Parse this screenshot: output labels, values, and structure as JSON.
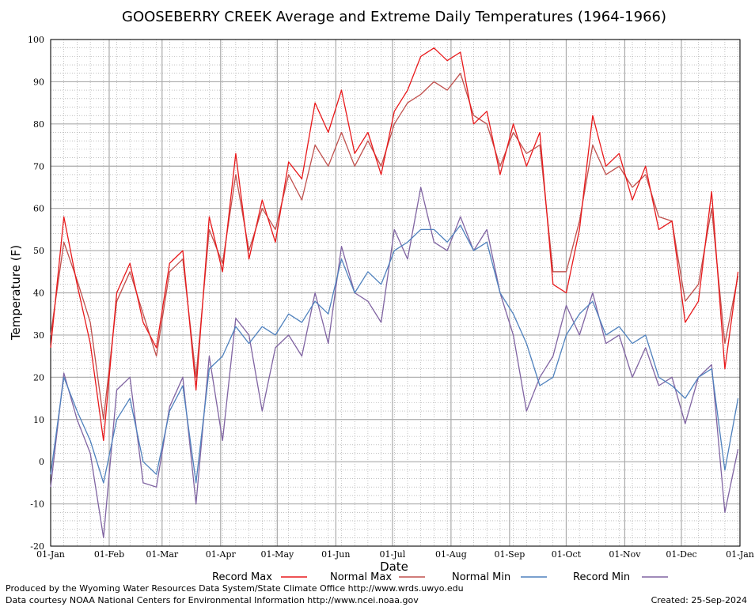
{
  "chart_data": {
    "type": "line",
    "title": "GOOSEBERRY CREEK Average and Extreme Daily Temperatures (1964-1966)",
    "xlabel": "Date",
    "ylabel": "Temperature (F)",
    "ylim": [
      -20,
      100
    ],
    "y_ticks": [
      -20,
      -10,
      0,
      10,
      20,
      30,
      40,
      50,
      60,
      70,
      80,
      90,
      100
    ],
    "x_ticks": [
      "01-Jan",
      "01-Feb",
      "01-Mar",
      "01-Apr",
      "01-May",
      "01-Jun",
      "01-Jul",
      "01-Aug",
      "01-Sep",
      "01-Oct",
      "01-Nov",
      "01-Dec",
      "01-Jan"
    ],
    "grid": true,
    "legend_position": "bottom",
    "series": [
      {
        "name": "Record Max",
        "color": "#e8191b",
        "x": [
          "01-Jan",
          "08-Jan",
          "15-Jan",
          "22-Jan",
          "29-Jan",
          "05-Feb",
          "12-Feb",
          "19-Feb",
          "26-Feb",
          "05-Mar",
          "12-Mar",
          "19-Mar",
          "26-Mar",
          "02-Apr",
          "09-Apr",
          "16-Apr",
          "23-Apr",
          "30-Apr",
          "07-May",
          "14-May",
          "21-May",
          "28-May",
          "04-Jun",
          "11-Jun",
          "18-Jun",
          "25-Jun",
          "02-Jul",
          "09-Jul",
          "16-Jul",
          "23-Jul",
          "30-Jul",
          "06-Aug",
          "13-Aug",
          "20-Aug",
          "27-Aug",
          "03-Sep",
          "10-Sep",
          "17-Sep",
          "24-Sep",
          "01-Oct",
          "08-Oct",
          "15-Oct",
          "22-Oct",
          "29-Oct",
          "05-Nov",
          "12-Nov",
          "19-Nov",
          "26-Nov",
          "03-Dec",
          "10-Dec",
          "17-Dec",
          "24-Dec",
          "31-Dec"
        ],
        "values": [
          27,
          58,
          42,
          28,
          5,
          40,
          47,
          33,
          27,
          47,
          50,
          17,
          58,
          45,
          73,
          48,
          62,
          52,
          71,
          67,
          85,
          78,
          88,
          73,
          78,
          68,
          83,
          88,
          96,
          98,
          95,
          97,
          80,
          83,
          68,
          80,
          70,
          78,
          42,
          40,
          55,
          82,
          70,
          73,
          62,
          70,
          55,
          57,
          33,
          38,
          64,
          22,
          45
        ]
      },
      {
        "name": "Normal Max",
        "color": "#c0504d",
        "x": [
          "01-Jan",
          "08-Jan",
          "15-Jan",
          "22-Jan",
          "29-Jan",
          "05-Feb",
          "12-Feb",
          "19-Feb",
          "26-Feb",
          "05-Mar",
          "12-Mar",
          "19-Mar",
          "26-Mar",
          "02-Apr",
          "09-Apr",
          "16-Apr",
          "23-Apr",
          "30-Apr",
          "07-May",
          "14-May",
          "21-May",
          "28-May",
          "04-Jun",
          "11-Jun",
          "18-Jun",
          "25-Jun",
          "02-Jul",
          "09-Jul",
          "16-Jul",
          "23-Jul",
          "30-Jul",
          "06-Aug",
          "13-Aug",
          "20-Aug",
          "27-Aug",
          "03-Sep",
          "10-Sep",
          "17-Sep",
          "24-Sep",
          "01-Oct",
          "08-Oct",
          "15-Oct",
          "22-Oct",
          "29-Oct",
          "05-Nov",
          "12-Nov",
          "19-Nov",
          "26-Nov",
          "03-Dec",
          "10-Dec",
          "17-Dec",
          "24-Dec",
          "31-Dec"
        ],
        "values": [
          30,
          52,
          43,
          33,
          10,
          38,
          45,
          35,
          25,
          45,
          48,
          20,
          55,
          47,
          68,
          50,
          60,
          55,
          68,
          62,
          75,
          70,
          78,
          70,
          76,
          70,
          80,
          85,
          87,
          90,
          88,
          92,
          82,
          80,
          70,
          78,
          73,
          75,
          45,
          45,
          57,
          75,
          68,
          70,
          65,
          68,
          58,
          57,
          38,
          42,
          60,
          28,
          44
        ]
      },
      {
        "name": "Normal Min",
        "color": "#4f81bd",
        "x": [
          "01-Jan",
          "08-Jan",
          "15-Jan",
          "22-Jan",
          "29-Jan",
          "05-Feb",
          "12-Feb",
          "19-Feb",
          "26-Feb",
          "05-Mar",
          "12-Mar",
          "19-Mar",
          "26-Mar",
          "02-Apr",
          "09-Apr",
          "16-Apr",
          "23-Apr",
          "30-Apr",
          "07-May",
          "14-May",
          "21-May",
          "28-May",
          "04-Jun",
          "11-Jun",
          "18-Jun",
          "25-Jun",
          "02-Jul",
          "09-Jul",
          "16-Jul",
          "23-Jul",
          "30-Jul",
          "06-Aug",
          "13-Aug",
          "20-Aug",
          "27-Aug",
          "03-Sep",
          "10-Sep",
          "17-Sep",
          "24-Sep",
          "01-Oct",
          "08-Oct",
          "15-Oct",
          "22-Oct",
          "29-Oct",
          "05-Nov",
          "12-Nov",
          "19-Nov",
          "26-Nov",
          "03-Dec",
          "10-Dec",
          "17-Dec",
          "24-Dec",
          "31-Dec"
        ],
        "values": [
          -3,
          20,
          12,
          5,
          -5,
          10,
          15,
          0,
          -3,
          12,
          18,
          -5,
          22,
          25,
          32,
          28,
          32,
          30,
          35,
          33,
          38,
          35,
          48,
          40,
          45,
          42,
          50,
          52,
          55,
          55,
          52,
          56,
          50,
          52,
          40,
          35,
          28,
          18,
          20,
          30,
          35,
          38,
          30,
          32,
          28,
          30,
          20,
          18,
          15,
          20,
          22,
          -2,
          15
        ]
      },
      {
        "name": "Record Min",
        "color": "#8064a2",
        "x": [
          "01-Jan",
          "08-Jan",
          "15-Jan",
          "22-Jan",
          "29-Jan",
          "05-Feb",
          "12-Feb",
          "19-Feb",
          "26-Feb",
          "05-Mar",
          "12-Mar",
          "19-Mar",
          "26-Mar",
          "02-Apr",
          "09-Apr",
          "16-Apr",
          "23-Apr",
          "30-Apr",
          "07-May",
          "14-May",
          "21-May",
          "28-May",
          "04-Jun",
          "11-Jun",
          "18-Jun",
          "25-Jun",
          "02-Jul",
          "09-Jul",
          "16-Jul",
          "23-Jul",
          "30-Jul",
          "06-Aug",
          "13-Aug",
          "20-Aug",
          "27-Aug",
          "03-Sep",
          "10-Sep",
          "17-Sep",
          "24-Sep",
          "01-Oct",
          "08-Oct",
          "15-Oct",
          "22-Oct",
          "29-Oct",
          "05-Nov",
          "12-Nov",
          "19-Nov",
          "26-Nov",
          "03-Dec",
          "10-Dec",
          "17-Dec",
          "24-Dec",
          "31-Dec"
        ],
        "values": [
          -6,
          21,
          10,
          2,
          -18,
          17,
          20,
          -5,
          -6,
          13,
          20,
          -10,
          25,
          5,
          34,
          30,
          12,
          27,
          30,
          25,
          40,
          28,
          51,
          40,
          38,
          33,
          55,
          48,
          65,
          52,
          50,
          58,
          50,
          55,
          40,
          30,
          12,
          20,
          25,
          37,
          30,
          40,
          28,
          30,
          20,
          27,
          18,
          20,
          9,
          20,
          23,
          -12,
          3
        ]
      }
    ]
  },
  "footer": {
    "produced_by": "Produced by the Wyoming Water Resources Data System/State Climate Office http://www.wrds.uwyo.edu",
    "data_courtesy": "Data courtesy NOAA National Centers for Environmental Information http://www.ncei.noaa.gov",
    "created": "Created:  25-Sep-2024"
  }
}
